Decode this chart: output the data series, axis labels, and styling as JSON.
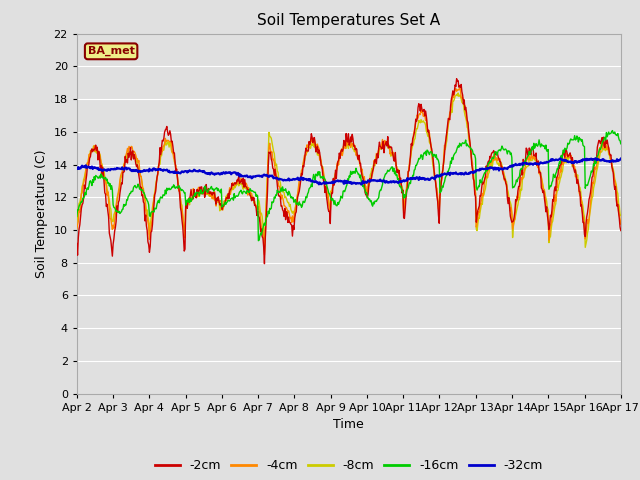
{
  "title": "Soil Temperatures Set A",
  "xlabel": "Time",
  "ylabel": "Soil Temperature (C)",
  "ylim": [
    0,
    22
  ],
  "yticks": [
    0,
    2,
    4,
    6,
    8,
    10,
    12,
    14,
    16,
    18,
    20,
    22
  ],
  "colors": {
    "-2cm": "#cc0000",
    "-4cm": "#ff8800",
    "-8cm": "#cccc00",
    "-16cm": "#00cc00",
    "-32cm": "#0000cc"
  },
  "legend_labels": [
    "-2cm",
    "-4cm",
    "-8cm",
    "-16cm",
    "-32cm"
  ],
  "annotation": "BA_met",
  "annotation_box_color": "#eeee88",
  "annotation_text_color": "#880000",
  "background_color": "#e0e0e0",
  "n_days": 15,
  "points_per_day": 48,
  "xtick_labels": [
    "Apr 2",
    "Apr 3",
    "Apr 4",
    "Apr 5",
    "Apr 6",
    "Apr 7",
    "Apr 8",
    "Apr 9",
    "Apr 10",
    "Apr 11",
    "Apr 12",
    "Apr 13",
    "Apr 14",
    "Apr 15",
    "Apr 16",
    "Apr 17"
  ],
  "grid_color": "#ffffff",
  "linewidth": 1.0
}
